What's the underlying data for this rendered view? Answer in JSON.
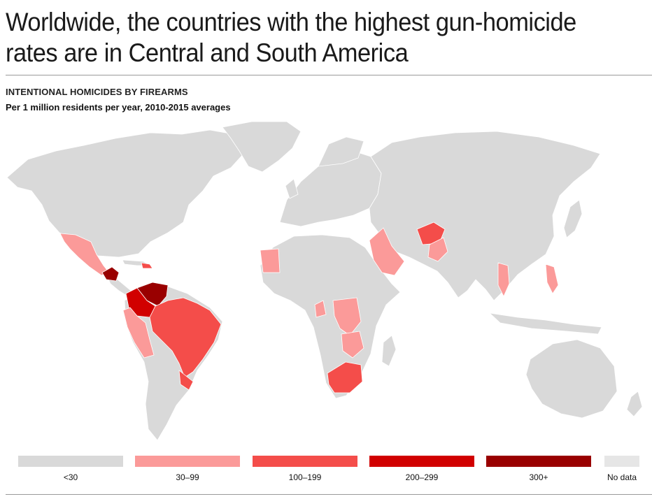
{
  "headline": "Worldwide, the countries with the highest gun-homicide rates are in Central and South America",
  "kicker": "INTENTIONAL HOMICIDES BY FIREARMS",
  "subkicker": "Per 1 million residents per year, 2010-2015 averages",
  "colors": {
    "lt30": "#d9d9d9",
    "r30_99": "#fb9a99",
    "r100_199": "#f44d4a",
    "r200_299": "#d10000",
    "r300p": "#990000",
    "nodata": "#e6e6e6",
    "border": "#ffffff"
  },
  "legend": [
    {
      "label": "<30",
      "color_key": "lt30"
    },
    {
      "label": "30–99",
      "color_key": "r30_99"
    },
    {
      "label": "100–199",
      "color_key": "r100_199"
    },
    {
      "label": "200–299",
      "color_key": "r200_299"
    },
    {
      "label": "300+",
      "color_key": "r300p"
    },
    {
      "label": "No data",
      "color_key": "nodata"
    }
  ],
  "regions": [
    {
      "name": "Mexico",
      "bin": "30–99"
    },
    {
      "name": "Honduras / Guatemala / El Salvador",
      "bin": "300+"
    },
    {
      "name": "Venezuela",
      "bin": "300+"
    },
    {
      "name": "Colombia",
      "bin": "200–299"
    },
    {
      "name": "Brazil",
      "bin": "100–199"
    },
    {
      "name": "Peru / Ecuador",
      "bin": "30–99"
    },
    {
      "name": "Paraguay",
      "bin": "100–199"
    },
    {
      "name": "Uruguay",
      "bin": "100–199"
    },
    {
      "name": "Caribbean islands",
      "bin": "100–199"
    },
    {
      "name": "South Africa",
      "bin": "100–199"
    },
    {
      "name": "Afghanistan",
      "bin": "100–199"
    },
    {
      "name": "Pakistan",
      "bin": "30–99"
    },
    {
      "name": "Saudi Arabia / Yemen",
      "bin": "30–99"
    },
    {
      "name": "Mali / Mauritania",
      "bin": "30–99"
    },
    {
      "name": "Congo",
      "bin": "30–99"
    },
    {
      "name": "Zambia / Zimbabwe / Mozambique",
      "bin": "30–99"
    },
    {
      "name": "Botswana / Lesotho",
      "bin": "30–99"
    },
    {
      "name": "Philippines",
      "bin": "30–99"
    },
    {
      "name": "Thailand / Myanmar",
      "bin": "30–99"
    }
  ]
}
